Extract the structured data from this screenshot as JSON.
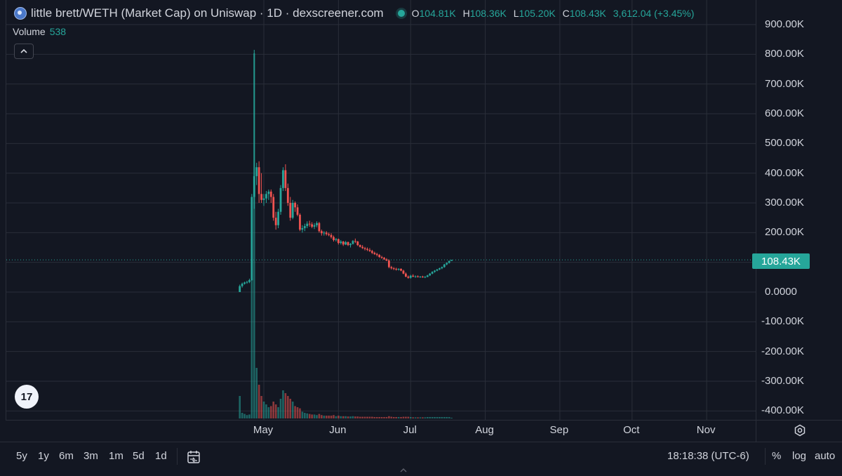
{
  "header": {
    "title": "little brett/WETH (Market Cap) on Uniswap · 1D · dexscreener.com",
    "ohlc": {
      "open_label": "O",
      "open": "104.81K",
      "high_label": "H",
      "high": "108.36K",
      "low_label": "L",
      "low": "105.20K",
      "close_label": "C",
      "close": "108.43K",
      "change": "3,612.04 (+3.45%)"
    }
  },
  "volume_legend": {
    "label": "Volume",
    "value": "538"
  },
  "logo_text": "17",
  "current_price_tag": "108.43K",
  "colors": {
    "up": "#26a69a",
    "down": "#ef5350",
    "background": "#131722",
    "grid": "#2a2e39"
  },
  "icons": {
    "collapse": "chevron-up-icon",
    "settings": "gear-icon",
    "date_range": "calendar-icon",
    "resize": "chevron-up-icon"
  },
  "bottom_toolbar": {
    "ranges": [
      "5y",
      "1y",
      "6m",
      "3m",
      "1m",
      "5d",
      "1d"
    ],
    "clock": "18:18:38 (UTC-6)",
    "modes": [
      "%",
      "log",
      "auto"
    ]
  },
  "chart_data": {
    "type": "candlestick",
    "title": "little brett/WETH (Market Cap) on Uniswap · 1D · dexscreener.com",
    "y_tick_labels": [
      "900.00K",
      "800.00K",
      "700.00K",
      "600.00K",
      "500.00K",
      "400.00K",
      "300.00K",
      "200.00K",
      "100.00K",
      "0.0000",
      "-100.00K",
      "-200.00K",
      "-300.00K",
      "-400.00K"
    ],
    "y_tick_values": [
      900000,
      800000,
      700000,
      600000,
      500000,
      400000,
      300000,
      200000,
      100000,
      0,
      -100000,
      -200000,
      -300000,
      -400000
    ],
    "ylim": [
      -420000,
      960000
    ],
    "x_tick_labels": [
      "May",
      "Jun",
      "Jul",
      "Aug",
      "Sep",
      "Oct",
      "Nov"
    ],
    "x_tick_dates": [
      "2024-05-01",
      "2024-06-01",
      "2024-07-01",
      "2024-08-01",
      "2024-09-01",
      "2024-10-01",
      "2024-11-01"
    ],
    "xlim": [
      "2024-01-15",
      "2024-11-20"
    ],
    "grid": true,
    "current_price": 108430,
    "candles": [
      {
        "date": "2024-04-21",
        "o": 0,
        "h": 25000,
        "l": 0,
        "c": 20000,
        "v": 40000
      },
      {
        "date": "2024-04-22",
        "o": 20000,
        "h": 32000,
        "l": 15000,
        "c": 28000,
        "v": 10000
      },
      {
        "date": "2024-04-23",
        "o": 28000,
        "h": 35000,
        "l": 25000,
        "c": 32000,
        "v": 8000
      },
      {
        "date": "2024-04-24",
        "o": 32000,
        "h": 38000,
        "l": 28000,
        "c": 34000,
        "v": 6000
      },
      {
        "date": "2024-04-25",
        "o": 34000,
        "h": 45000,
        "l": 30000,
        "c": 40000,
        "v": 7000
      },
      {
        "date": "2024-04-26",
        "o": 40000,
        "h": 330000,
        "l": 38000,
        "c": 320000,
        "v": 250000
      },
      {
        "date": "2024-04-27",
        "o": 320000,
        "h": 815000,
        "l": 280000,
        "c": 390000,
        "v": 650000
      },
      {
        "date": "2024-04-28",
        "o": 390000,
        "h": 435000,
        "l": 360000,
        "c": 420000,
        "v": 90000
      },
      {
        "date": "2024-04-29",
        "o": 420000,
        "h": 440000,
        "l": 300000,
        "c": 330000,
        "v": 60000
      },
      {
        "date": "2024-04-30",
        "o": 330000,
        "h": 400000,
        "l": 300000,
        "c": 310000,
        "v": 40000
      },
      {
        "date": "2024-05-01",
        "o": 310000,
        "h": 330000,
        "l": 290000,
        "c": 315000,
        "v": 30000
      },
      {
        "date": "2024-05-02",
        "o": 315000,
        "h": 340000,
        "l": 300000,
        "c": 330000,
        "v": 25000
      },
      {
        "date": "2024-05-03",
        "o": 330000,
        "h": 345000,
        "l": 310000,
        "c": 338000,
        "v": 20000
      },
      {
        "date": "2024-05-04",
        "o": 338000,
        "h": 345000,
        "l": 300000,
        "c": 320000,
        "v": 22000
      },
      {
        "date": "2024-05-05",
        "o": 320000,
        "h": 330000,
        "l": 240000,
        "c": 250000,
        "v": 30000
      },
      {
        "date": "2024-05-06",
        "o": 250000,
        "h": 270000,
        "l": 210000,
        "c": 225000,
        "v": 25000
      },
      {
        "date": "2024-05-07",
        "o": 225000,
        "h": 280000,
        "l": 215000,
        "c": 270000,
        "v": 20000
      },
      {
        "date": "2024-05-08",
        "o": 270000,
        "h": 360000,
        "l": 260000,
        "c": 350000,
        "v": 35000
      },
      {
        "date": "2024-05-09",
        "o": 350000,
        "h": 420000,
        "l": 340000,
        "c": 410000,
        "v": 50000
      },
      {
        "date": "2024-05-10",
        "o": 410000,
        "h": 430000,
        "l": 340000,
        "c": 350000,
        "v": 45000
      },
      {
        "date": "2024-05-11",
        "o": 350000,
        "h": 365000,
        "l": 290000,
        "c": 300000,
        "v": 40000
      },
      {
        "date": "2024-05-12",
        "o": 300000,
        "h": 320000,
        "l": 240000,
        "c": 250000,
        "v": 35000
      },
      {
        "date": "2024-05-13",
        "o": 250000,
        "h": 310000,
        "l": 245000,
        "c": 300000,
        "v": 30000
      },
      {
        "date": "2024-05-14",
        "o": 300000,
        "h": 305000,
        "l": 270000,
        "c": 285000,
        "v": 22000
      },
      {
        "date": "2024-05-15",
        "o": 285000,
        "h": 295000,
        "l": 255000,
        "c": 260000,
        "v": 20000
      },
      {
        "date": "2024-05-16",
        "o": 260000,
        "h": 265000,
        "l": 205000,
        "c": 210000,
        "v": 18000
      },
      {
        "date": "2024-05-17",
        "o": 210000,
        "h": 225000,
        "l": 200000,
        "c": 215000,
        "v": 12000
      },
      {
        "date": "2024-05-18",
        "o": 215000,
        "h": 230000,
        "l": 205000,
        "c": 222000,
        "v": 10000
      },
      {
        "date": "2024-05-19",
        "o": 222000,
        "h": 238000,
        "l": 215000,
        "c": 230000,
        "v": 9000
      },
      {
        "date": "2024-05-20",
        "o": 230000,
        "h": 240000,
        "l": 220000,
        "c": 228000,
        "v": 8000
      },
      {
        "date": "2024-05-21",
        "o": 228000,
        "h": 235000,
        "l": 215000,
        "c": 220000,
        "v": 7000
      },
      {
        "date": "2024-05-22",
        "o": 220000,
        "h": 232000,
        "l": 212000,
        "c": 225000,
        "v": 7000
      },
      {
        "date": "2024-05-23",
        "o": 225000,
        "h": 238000,
        "l": 218000,
        "c": 232000,
        "v": 6000
      },
      {
        "date": "2024-05-24",
        "o": 232000,
        "h": 236000,
        "l": 200000,
        "c": 205000,
        "v": 8000
      },
      {
        "date": "2024-05-25",
        "o": 205000,
        "h": 210000,
        "l": 190000,
        "c": 198000,
        "v": 6000
      },
      {
        "date": "2024-05-26",
        "o": 198000,
        "h": 205000,
        "l": 190000,
        "c": 200000,
        "v": 5000
      },
      {
        "date": "2024-05-27",
        "o": 200000,
        "h": 205000,
        "l": 190000,
        "c": 195000,
        "v": 5000
      },
      {
        "date": "2024-05-28",
        "o": 195000,
        "h": 200000,
        "l": 188000,
        "c": 192000,
        "v": 5000
      },
      {
        "date": "2024-05-29",
        "o": 192000,
        "h": 198000,
        "l": 180000,
        "c": 185000,
        "v": 5000
      },
      {
        "date": "2024-05-30",
        "o": 185000,
        "h": 190000,
        "l": 170000,
        "c": 175000,
        "v": 6000
      },
      {
        "date": "2024-05-31",
        "o": 175000,
        "h": 182000,
        "l": 170000,
        "c": 178000,
        "v": 4000
      },
      {
        "date": "2024-06-01",
        "o": 178000,
        "h": 180000,
        "l": 160000,
        "c": 165000,
        "v": 5000
      },
      {
        "date": "2024-06-02",
        "o": 165000,
        "h": 175000,
        "l": 160000,
        "c": 170000,
        "v": 4000
      },
      {
        "date": "2024-06-03",
        "o": 170000,
        "h": 172000,
        "l": 155000,
        "c": 160000,
        "v": 4000
      },
      {
        "date": "2024-06-04",
        "o": 160000,
        "h": 172000,
        "l": 158000,
        "c": 168000,
        "v": 4000
      },
      {
        "date": "2024-06-05",
        "o": 168000,
        "h": 170000,
        "l": 155000,
        "c": 158000,
        "v": 3500
      },
      {
        "date": "2024-06-06",
        "o": 158000,
        "h": 165000,
        "l": 150000,
        "c": 162000,
        "v": 3500
      },
      {
        "date": "2024-06-07",
        "o": 162000,
        "h": 175000,
        "l": 160000,
        "c": 172000,
        "v": 4000
      },
      {
        "date": "2024-06-08",
        "o": 172000,
        "h": 180000,
        "l": 165000,
        "c": 170000,
        "v": 3500
      },
      {
        "date": "2024-06-09",
        "o": 170000,
        "h": 172000,
        "l": 155000,
        "c": 158000,
        "v": 3500
      },
      {
        "date": "2024-06-10",
        "o": 158000,
        "h": 160000,
        "l": 150000,
        "c": 152000,
        "v": 3000
      },
      {
        "date": "2024-06-11",
        "o": 152000,
        "h": 158000,
        "l": 145000,
        "c": 148000,
        "v": 3000
      },
      {
        "date": "2024-06-12",
        "o": 148000,
        "h": 152000,
        "l": 140000,
        "c": 145000,
        "v": 3000
      },
      {
        "date": "2024-06-13",
        "o": 145000,
        "h": 150000,
        "l": 138000,
        "c": 142000,
        "v": 3000
      },
      {
        "date": "2024-06-14",
        "o": 142000,
        "h": 148000,
        "l": 135000,
        "c": 138000,
        "v": 3000
      },
      {
        "date": "2024-06-15",
        "o": 138000,
        "h": 142000,
        "l": 128000,
        "c": 132000,
        "v": 3000
      },
      {
        "date": "2024-06-16",
        "o": 132000,
        "h": 136000,
        "l": 125000,
        "c": 128000,
        "v": 2500
      },
      {
        "date": "2024-06-17",
        "o": 128000,
        "h": 132000,
        "l": 120000,
        "c": 125000,
        "v": 2500
      },
      {
        "date": "2024-06-18",
        "o": 125000,
        "h": 128000,
        "l": 115000,
        "c": 118000,
        "v": 2500
      },
      {
        "date": "2024-06-19",
        "o": 118000,
        "h": 122000,
        "l": 112000,
        "c": 115000,
        "v": 2500
      },
      {
        "date": "2024-06-20",
        "o": 115000,
        "h": 118000,
        "l": 108000,
        "c": 110000,
        "v": 2500
      },
      {
        "date": "2024-06-21",
        "o": 110000,
        "h": 114000,
        "l": 104000,
        "c": 106000,
        "v": 2500
      },
      {
        "date": "2024-06-22",
        "o": 106000,
        "h": 110000,
        "l": 80000,
        "c": 84000,
        "v": 4000
      },
      {
        "date": "2024-06-23",
        "o": 84000,
        "h": 88000,
        "l": 76000,
        "c": 80000,
        "v": 3000
      },
      {
        "date": "2024-06-24",
        "o": 80000,
        "h": 84000,
        "l": 74000,
        "c": 78000,
        "v": 2500
      },
      {
        "date": "2024-06-25",
        "o": 78000,
        "h": 82000,
        "l": 72000,
        "c": 76000,
        "v": 2500
      },
      {
        "date": "2024-06-26",
        "o": 76000,
        "h": 80000,
        "l": 72000,
        "c": 78000,
        "v": 2500
      },
      {
        "date": "2024-06-27",
        "o": 78000,
        "h": 80000,
        "l": 70000,
        "c": 72000,
        "v": 2500
      },
      {
        "date": "2024-06-28",
        "o": 72000,
        "h": 75000,
        "l": 60000,
        "c": 62000,
        "v": 3000
      },
      {
        "date": "2024-06-29",
        "o": 62000,
        "h": 66000,
        "l": 50000,
        "c": 52000,
        "v": 3000
      },
      {
        "date": "2024-06-30",
        "o": 52000,
        "h": 56000,
        "l": 45000,
        "c": 48000,
        "v": 3000
      },
      {
        "date": "2024-07-01",
        "o": 48000,
        "h": 58000,
        "l": 45000,
        "c": 55000,
        "v": 2500
      },
      {
        "date": "2024-07-02",
        "o": 55000,
        "h": 60000,
        "l": 50000,
        "c": 52000,
        "v": 2000
      },
      {
        "date": "2024-07-03",
        "o": 52000,
        "h": 56000,
        "l": 48000,
        "c": 53000,
        "v": 2000
      },
      {
        "date": "2024-07-04",
        "o": 53000,
        "h": 56000,
        "l": 49000,
        "c": 51000,
        "v": 2000
      },
      {
        "date": "2024-07-05",
        "o": 51000,
        "h": 54000,
        "l": 48000,
        "c": 52000,
        "v": 2000
      },
      {
        "date": "2024-07-06",
        "o": 52000,
        "h": 55000,
        "l": 48000,
        "c": 50000,
        "v": 2000
      },
      {
        "date": "2024-07-07",
        "o": 50000,
        "h": 54000,
        "l": 47000,
        "c": 51000,
        "v": 2000
      },
      {
        "date": "2024-07-08",
        "o": 51000,
        "h": 58000,
        "l": 50000,
        "c": 56000,
        "v": 2500
      },
      {
        "date": "2024-07-09",
        "o": 56000,
        "h": 64000,
        "l": 54000,
        "c": 62000,
        "v": 2500
      },
      {
        "date": "2024-07-10",
        "o": 62000,
        "h": 70000,
        "l": 60000,
        "c": 68000,
        "v": 2500
      },
      {
        "date": "2024-07-11",
        "o": 68000,
        "h": 74000,
        "l": 65000,
        "c": 72000,
        "v": 2500
      },
      {
        "date": "2024-07-12",
        "o": 72000,
        "h": 78000,
        "l": 70000,
        "c": 76000,
        "v": 2500
      },
      {
        "date": "2024-07-13",
        "o": 76000,
        "h": 82000,
        "l": 74000,
        "c": 80000,
        "v": 2500
      },
      {
        "date": "2024-07-14",
        "o": 80000,
        "h": 86000,
        "l": 77000,
        "c": 84000,
        "v": 2500
      },
      {
        "date": "2024-07-15",
        "o": 84000,
        "h": 95000,
        "l": 82000,
        "c": 93000,
        "v": 2500
      },
      {
        "date": "2024-07-16",
        "o": 93000,
        "h": 100000,
        "l": 90000,
        "c": 98000,
        "v": 2500
      },
      {
        "date": "2024-07-17",
        "o": 98000,
        "h": 106000,
        "l": 96000,
        "c": 104810,
        "v": 2500
      },
      {
        "date": "2024-07-18",
        "o": 104810,
        "h": 108360,
        "l": 105200,
        "c": 108430,
        "v": 538
      }
    ]
  }
}
